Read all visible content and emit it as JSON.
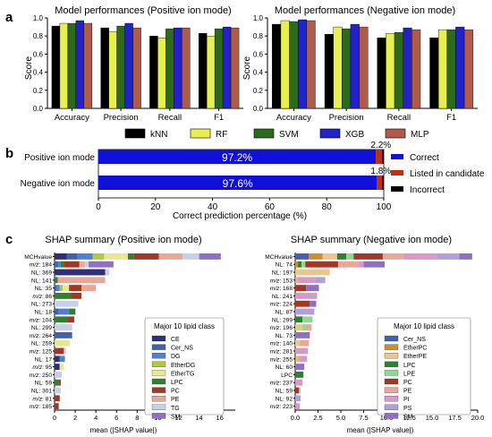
{
  "panel_labels": [
    "a",
    "b",
    "c"
  ],
  "legend_a": {
    "entries": [
      {
        "name": "kNN",
        "color": "#000000"
      },
      {
        "name": "RF",
        "color": "#e6f050"
      },
      {
        "name": "SVM",
        "color": "#2e6a1e"
      },
      {
        "name": "XGB",
        "color": "#2222c8"
      },
      {
        "name": "MLP",
        "color": "#b05a4a"
      }
    ]
  },
  "legend_b": {
    "entries": [
      {
        "name": "Correct",
        "color": "#1010d8"
      },
      {
        "name": "Listed in candidate",
        "color": "#c03010"
      },
      {
        "name": "Incorrect",
        "color": "#000000"
      }
    ]
  },
  "shap_class_colors": {
    "CE": "#2e2e7a",
    "Cer_NS": "#4060b0",
    "DG": "#5080d0",
    "EtherDG": "#b0c840",
    "EtherTG": "#e8e890",
    "LPC": "#308030",
    "PC": "#a03828",
    "PE": "#e8a898",
    "TG": "#c8d0e8",
    "SM": "#9070c0",
    "EtherPC": "#c89030",
    "EtherPE": "#e8c890",
    "LPE": "#90d890",
    "PI": "#d898c8",
    "PS": "#b0a0d8"
  },
  "chart_data": [
    {
      "type": "bar",
      "title": "Model performances (Positive ion mode)",
      "ylabel": "Score",
      "ylim": [
        0,
        1.0
      ],
      "yticks": [
        "0.0",
        "0.2",
        "0.4",
        "0.6",
        "0.8",
        "1.0"
      ],
      "categories": [
        "Accuracy",
        "Precision",
        "Recall",
        "F1"
      ],
      "series": [
        {
          "name": "kNN",
          "values": [
            0.91,
            0.89,
            0.8,
            0.83
          ]
        },
        {
          "name": "RF",
          "values": [
            0.94,
            0.85,
            0.78,
            0.8
          ]
        },
        {
          "name": "SVM",
          "values": [
            0.94,
            0.91,
            0.88,
            0.88
          ]
        },
        {
          "name": "XGB",
          "values": [
            0.97,
            0.94,
            0.89,
            0.9
          ]
        },
        {
          "name": "MLP",
          "values": [
            0.94,
            0.89,
            0.89,
            0.89
          ]
        }
      ]
    },
    {
      "type": "bar",
      "title": "Model performances (Negative ion mode)",
      "ylabel": "Score",
      "ylim": [
        0,
        1.0
      ],
      "yticks": [
        "0.0",
        "0.2",
        "0.4",
        "0.6",
        "0.8",
        "1.0"
      ],
      "categories": [
        "Accuracy",
        "Precision",
        "Recall",
        "F1"
      ],
      "series": [
        {
          "name": "kNN",
          "values": [
            0.93,
            0.82,
            0.78,
            0.78
          ]
        },
        {
          "name": "RF",
          "values": [
            0.97,
            0.9,
            0.83,
            0.87
          ]
        },
        {
          "name": "SVM",
          "values": [
            0.96,
            0.88,
            0.84,
            0.87
          ]
        },
        {
          "name": "XGB",
          "values": [
            0.98,
            0.93,
            0.89,
            0.9
          ]
        },
        {
          "name": "MLP",
          "values": [
            0.97,
            0.9,
            0.87,
            0.87
          ]
        }
      ]
    },
    {
      "type": "bar",
      "orientation": "horizontal-stacked",
      "xlabel": "Correct prediction percentage (%)",
      "xlim": [
        0,
        100
      ],
      "xticks": [
        "0",
        "20",
        "40",
        "60",
        "80",
        "100"
      ],
      "categories": [
        "Positive ion mode",
        "Negative ion mode"
      ],
      "series": [
        {
          "name": "Correct",
          "values": [
            97.2,
            97.6
          ],
          "labels": [
            "97.2%",
            "97.6%"
          ]
        },
        {
          "name": "Listed in candidate",
          "values": [
            2.2,
            1.8
          ],
          "labels": [
            "2.2%",
            "1.8%"
          ]
        },
        {
          "name": "Incorrect",
          "values": [
            0.6,
            0.6
          ]
        }
      ]
    },
    {
      "type": "bar",
      "orientation": "horizontal-stacked",
      "title": "SHAP summary (Positive ion mode)",
      "xlabel": "mean (|SHAP value|)",
      "xlim": [
        0,
        17.5
      ],
      "xticks": [
        0,
        2,
        4,
        6,
        8,
        10,
        12,
        14,
        16
      ],
      "legend_title": "Major 10 lipid class",
      "classes": [
        "CE",
        "Cer_NS",
        "DG",
        "EtherDG",
        "EtherTG",
        "LPC",
        "PC",
        "PE",
        "TG",
        "SM"
      ],
      "features": [
        {
          "label": "MCHvalue",
          "segments": [
            1.2,
            1.0,
            1.5,
            1.1,
            2.3,
            0.6,
            2.4,
            2.3,
            1.6,
            2.1
          ]
        },
        {
          "label": "m/z: 184",
          "segments": [
            0,
            0.3,
            0.3,
            0,
            0,
            0.3,
            1.5,
            0.5,
            0.4,
            2.4
          ]
        },
        {
          "label": "NL: 369",
          "segments": [
            4.9,
            0,
            0,
            0,
            0,
            0,
            0,
            0,
            0.4,
            0
          ]
        },
        {
          "label": "NL: 141",
          "segments": [
            0,
            0,
            0,
            0,
            0,
            0.3,
            0,
            4.6,
            0,
            0
          ]
        },
        {
          "label": "NL: 35",
          "segments": [
            0,
            0.2,
            0.3,
            0.3,
            0.6,
            0,
            1.2,
            1.4,
            0,
            0
          ]
        },
        {
          "label": "m/z: 86",
          "segments": [
            0,
            0,
            0,
            0,
            0,
            1.6,
            1.0,
            0,
            0,
            0
          ]
        },
        {
          "label": "NL: 273",
          "segments": [
            0,
            0,
            0,
            0,
            0,
            0,
            0,
            0,
            2.3,
            0
          ]
        },
        {
          "label": "NL: 18",
          "segments": [
            0,
            0.4,
            1.0,
            0,
            0,
            0.6,
            0,
            0,
            0.1,
            0
          ]
        },
        {
          "label": "m/z: 104",
          "segments": [
            0,
            0,
            0,
            0,
            0,
            1.3,
            0.6,
            0,
            0,
            0
          ]
        },
        {
          "label": "NL: 299",
          "segments": [
            0,
            0,
            0,
            0,
            0,
            0,
            0,
            0,
            1.7,
            0
          ]
        },
        {
          "label": "m/z: 264",
          "segments": [
            0,
            1.7,
            0,
            0,
            0,
            0,
            0,
            0,
            0,
            0
          ]
        },
        {
          "label": "NL: 259",
          "segments": [
            0,
            0,
            0,
            0,
            1.5,
            0,
            0,
            0,
            0,
            0
          ]
        },
        {
          "label": "m/z: 125",
          "segments": [
            0,
            0,
            0,
            0,
            0,
            0,
            0.9,
            0,
            0.2,
            0
          ]
        },
        {
          "label": "NL: 17",
          "segments": [
            0.5,
            0,
            0.5,
            0,
            0,
            0,
            0,
            0,
            0,
            0
          ]
        },
        {
          "label": "m/z: 95",
          "segments": [
            0.5,
            0,
            0,
            0,
            0.4,
            0,
            0,
            0,
            0,
            0
          ]
        },
        {
          "label": "m/z: 250",
          "segments": [
            0,
            0,
            0,
            0,
            0,
            0,
            0,
            0,
            0.7,
            0
          ]
        },
        {
          "label": "NL: 59",
          "segments": [
            0,
            0,
            0,
            0,
            0,
            0.4,
            0.2,
            0,
            0,
            0
          ]
        },
        {
          "label": "NL: 301",
          "segments": [
            0,
            0,
            0,
            0,
            0,
            0,
            0,
            0,
            0.6,
            0
          ]
        },
        {
          "label": "m/z: 81",
          "segments": [
            0,
            0,
            0,
            0,
            0,
            0,
            0.5,
            0,
            0,
            0
          ]
        },
        {
          "label": "m/z: 185",
          "segments": [
            0,
            0,
            0,
            0,
            0,
            0,
            0.4,
            0,
            0,
            0
          ]
        }
      ]
    },
    {
      "type": "bar",
      "orientation": "horizontal-stacked",
      "title": "SHAP summary (Negative ion mode)",
      "xlabel": "mean (|SHAP value|)",
      "xlim": [
        0,
        20
      ],
      "xticks": [
        "0.0",
        "2.5",
        "5.0",
        "7.5",
        "10.0",
        "12.5",
        "15.0",
        "17.5",
        "20.0"
      ],
      "legend_title": "Major 10 lipid class",
      "classes": [
        "Cer_NS",
        "EtherPC",
        "EtherPE",
        "LPC",
        "LPE",
        "PC",
        "PE",
        "PI",
        "PS",
        "SM"
      ],
      "features": [
        {
          "label": "MCHvalue",
          "segments": [
            1.5,
            1.5,
            1.6,
            1.0,
            0.8,
            3.2,
            2.3,
            3.6,
            2.5,
            1.4
          ]
        },
        {
          "label": "NL: 74",
          "segments": [
            0,
            0.3,
            0,
            0.4,
            0.4,
            3.6,
            2.2,
            0.6,
            0,
            2.3
          ]
        },
        {
          "label": "NL: 197",
          "segments": [
            0,
            0,
            3.8,
            0,
            0,
            0,
            0,
            0,
            0,
            0
          ]
        },
        {
          "label": "m/z: 153",
          "segments": [
            0,
            0,
            0,
            0,
            0,
            0,
            0.3,
            1.9,
            1.1,
            0
          ]
        },
        {
          "label": "m/z: 168",
          "segments": [
            0,
            0,
            0,
            0,
            0,
            1.2,
            0,
            0,
            0,
            1.4
          ]
        },
        {
          "label": "NL: 241",
          "segments": [
            0,
            0,
            0,
            0,
            0,
            0,
            0,
            2.4,
            0,
            0
          ]
        },
        {
          "label": "m/z: 224",
          "segments": [
            0,
            0,
            0,
            0,
            0,
            1.6,
            0,
            0,
            0,
            0.7
          ]
        },
        {
          "label": "NL: 87",
          "segments": [
            0,
            0,
            0,
            0,
            0,
            0,
            0,
            0,
            2.1,
            0
          ]
        },
        {
          "label": "NL: 299",
          "segments": [
            0,
            0,
            0,
            0.8,
            1.1,
            0,
            0,
            0,
            0,
            0
          ]
        },
        {
          "label": "m/z: 196",
          "segments": [
            0,
            0,
            0.8,
            0,
            0.3,
            0,
            0.7,
            0,
            0,
            0
          ]
        },
        {
          "label": "NL: 73",
          "segments": [
            0,
            0,
            0,
            0,
            0,
            0,
            0,
            0,
            0,
            1.6
          ]
        },
        {
          "label": "m/z: 140",
          "segments": [
            0,
            0,
            0.5,
            0,
            0,
            0,
            1.0,
            0,
            0,
            0
          ]
        },
        {
          "label": "m/z: 281",
          "segments": [
            0,
            0,
            0,
            0,
            0,
            0,
            0,
            1.2,
            0.2,
            0
          ]
        },
        {
          "label": "m/z: 255",
          "segments": [
            0,
            0.1,
            0.1,
            0,
            0,
            0,
            0.3,
            0.7,
            0.1,
            0
          ]
        },
        {
          "label": "NL: 60",
          "segments": [
            0,
            0,
            0,
            0,
            0,
            0,
            0,
            0,
            0,
            1.0
          ]
        },
        {
          "label": "LPC",
          "segments": [
            0,
            0,
            0,
            0.9,
            0,
            0,
            0,
            0,
            0,
            0
          ]
        },
        {
          "label": "m/z: 237",
          "segments": [
            0,
            0,
            0,
            0,
            0,
            0,
            0,
            0.8,
            0,
            0
          ]
        },
        {
          "label": "NL: 59",
          "segments": [
            0,
            0,
            0,
            0,
            0,
            0.4,
            0.2,
            0,
            0,
            0
          ]
        },
        {
          "label": "NL: 92",
          "segments": [
            0,
            0,
            0,
            0,
            0,
            0,
            0,
            0,
            0.6,
            0
          ]
        },
        {
          "label": "m/z: 223",
          "segments": [
            0,
            0,
            0,
            0,
            0,
            0,
            0,
            0.5,
            0,
            0
          ]
        }
      ]
    }
  ]
}
